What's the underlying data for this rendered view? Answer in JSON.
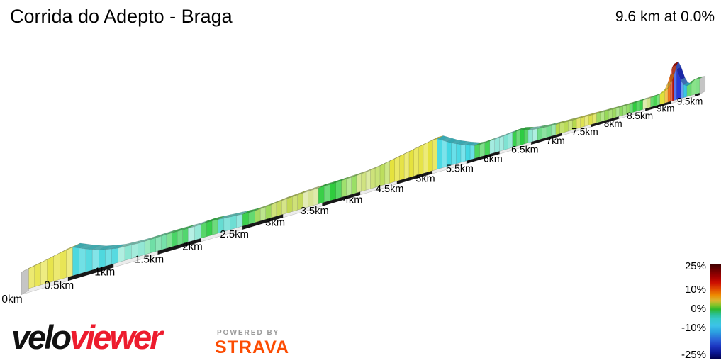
{
  "header": {
    "title": "Corrida do Adepto - Braga",
    "summary": "9.6 km at 0.0%"
  },
  "chart_data": {
    "type": "area",
    "title": "Corrida do Adepto - Braga",
    "total_label": "9.6 km at 0.0%",
    "distance_km": 9.6,
    "avg_gradient_pct": 0.0,
    "x_tick_km": [
      0,
      0.5,
      1,
      1.5,
      2,
      2.5,
      3,
      3.5,
      4,
      4.5,
      5,
      5.5,
      6,
      6.5,
      7,
      7.5,
      8,
      8.5,
      9,
      9.5
    ],
    "x_tick_labels": [
      "0km",
      "0.5km",
      "1km",
      "1.5km",
      "2km",
      "2.5km",
      "3km",
      "3.5km",
      "4km",
      "4.5km",
      "5km",
      "5.5km",
      "6km",
      "6.5km",
      "7km",
      "7.5km",
      "8km",
      "8.5km",
      "9km",
      "9.5km"
    ],
    "profile_points": [
      [
        0,
        26
      ],
      [
        0.2,
        31
      ],
      [
        0.4,
        37
      ],
      [
        0.55,
        40
      ],
      [
        0.7,
        32
      ],
      [
        0.85,
        25
      ],
      [
        1.05,
        20
      ],
      [
        1.3,
        18.5
      ],
      [
        1.6,
        19.5
      ],
      [
        1.9,
        19
      ],
      [
        2.1,
        20
      ],
      [
        2.35,
        18
      ],
      [
        2.6,
        16
      ],
      [
        2.8,
        17.5
      ],
      [
        3.0,
        20
      ],
      [
        3.3,
        22
      ],
      [
        3.7,
        23
      ],
      [
        4.0,
        24.5
      ],
      [
        4.2,
        27
      ],
      [
        4.5,
        33
      ],
      [
        4.8,
        39
      ],
      [
        5.05,
        44
      ],
      [
        5.3,
        30
      ],
      [
        5.5,
        22
      ],
      [
        5.65,
        17
      ],
      [
        5.9,
        18.5
      ],
      [
        6.1,
        20
      ],
      [
        6.3,
        21.5
      ],
      [
        6.5,
        17
      ],
      [
        6.7,
        15
      ],
      [
        7.0,
        14
      ],
      [
        7.3,
        13.5
      ],
      [
        7.6,
        13
      ],
      [
        7.9,
        12.5
      ],
      [
        8.2,
        12.5
      ],
      [
        8.5,
        13
      ],
      [
        8.7,
        13.5
      ],
      [
        8.8,
        15
      ],
      [
        8.9,
        20
      ],
      [
        8.97,
        32
      ],
      [
        9.02,
        45
      ],
      [
        9.05,
        52
      ],
      [
        9.09,
        50
      ],
      [
        9.14,
        38
      ],
      [
        9.2,
        26
      ],
      [
        9.27,
        17
      ],
      [
        9.33,
        15
      ],
      [
        9.4,
        19
      ],
      [
        9.47,
        22
      ],
      [
        9.53,
        21
      ],
      [
        9.6,
        20
      ]
    ],
    "gradient_sections": [
      [
        0,
        0.55,
        "#e7e44d"
      ],
      [
        0.55,
        1.05,
        "#4ed8de"
      ],
      [
        1.05,
        1.35,
        "#8ce6d2"
      ],
      [
        1.35,
        1.6,
        "#6fdfa6"
      ],
      [
        1.6,
        1.85,
        "#49d466"
      ],
      [
        1.85,
        2.0,
        "#97e8d8"
      ],
      [
        2.0,
        2.2,
        "#2ecc44"
      ],
      [
        2.2,
        2.5,
        "#66dcd2"
      ],
      [
        2.5,
        2.65,
        "#3dd04e"
      ],
      [
        2.65,
        2.85,
        "#9fd95c"
      ],
      [
        2.85,
        3.25,
        "#c3d957"
      ],
      [
        3.25,
        3.45,
        "#d7e396"
      ],
      [
        3.45,
        3.75,
        "#2fcc3e"
      ],
      [
        3.75,
        3.95,
        "#9adf66"
      ],
      [
        3.95,
        4.2,
        "#cde27a"
      ],
      [
        4.2,
        4.4,
        "#b9dc55"
      ],
      [
        4.4,
        5.07,
        "#e5e23e"
      ],
      [
        5.07,
        5.62,
        "#43d7e3"
      ],
      [
        5.62,
        5.85,
        "#44d355"
      ],
      [
        5.85,
        6.0,
        "#8de6d8"
      ],
      [
        6.0,
        6.2,
        "#7fe2d2"
      ],
      [
        6.2,
        6.45,
        "#2ecc44"
      ],
      [
        6.45,
        6.6,
        "#8ce6d2"
      ],
      [
        6.6,
        6.9,
        "#6fdc8a"
      ],
      [
        6.9,
        7.25,
        "#b5d94d"
      ],
      [
        7.25,
        7.6,
        "#dce04a"
      ],
      [
        7.6,
        7.95,
        "#97d958"
      ],
      [
        7.95,
        8.2,
        "#8cdb60"
      ],
      [
        8.2,
        8.45,
        "#2fcd3f"
      ],
      [
        8.45,
        8.6,
        "#cfe38a"
      ],
      [
        8.6,
        8.78,
        "#3fd148"
      ],
      [
        8.78,
        8.88,
        "#e0e13a"
      ],
      [
        8.88,
        8.94,
        "#f2b224"
      ],
      [
        8.94,
        8.99,
        "#ef6f15"
      ],
      [
        8.99,
        9.03,
        "#e03010"
      ],
      [
        9.03,
        9.065,
        "#b41208"
      ],
      [
        9.065,
        9.12,
        "#2b51e8"
      ],
      [
        9.12,
        9.2,
        "#1b2ed6"
      ],
      [
        9.2,
        9.26,
        "#2c75e4"
      ],
      [
        9.26,
        9.33,
        "#38c4e8"
      ],
      [
        9.33,
        9.42,
        "#41d14d"
      ],
      [
        9.42,
        9.52,
        "#83e184"
      ],
      [
        9.52,
        9.6,
        "#4cd355"
      ]
    ],
    "baseline_ticks": {
      "light": "#ececec",
      "dark": "#171717",
      "interval_km": 0.5
    },
    "end_caps_color": "#c5c5c5",
    "legend": {
      "labels": [
        {
          "text": "25%",
          "pos": 0.03
        },
        {
          "text": "10%",
          "pos": 0.275
        },
        {
          "text": "0%",
          "pos": 0.475
        },
        {
          "text": "-10%",
          "pos": 0.68
        },
        {
          "text": "-25%",
          "pos": 0.965
        }
      ],
      "gradient_stops": [
        [
          0,
          "#3c0000"
        ],
        [
          0.07,
          "#700000"
        ],
        [
          0.14,
          "#a40000"
        ],
        [
          0.2,
          "#cc0e00"
        ],
        [
          0.27,
          "#e24e00"
        ],
        [
          0.33,
          "#ee8a00"
        ],
        [
          0.39,
          "#d8b830"
        ],
        [
          0.44,
          "#7cc428"
        ],
        [
          0.48,
          "#2eb82e"
        ],
        [
          0.53,
          "#2abf8e"
        ],
        [
          0.58,
          "#35c9c9"
        ],
        [
          0.65,
          "#3cc3e8"
        ],
        [
          0.72,
          "#2b9fe0"
        ],
        [
          0.8,
          "#2a64d8"
        ],
        [
          0.87,
          "#1b35c0"
        ],
        [
          0.94,
          "#0a1490"
        ],
        [
          1,
          "#02004e"
        ]
      ]
    }
  },
  "footer": {
    "brand_part1": "velo",
    "brand_part2": "viewer",
    "brand_color1": "#111111",
    "brand_color2": "#ed1c2e",
    "powered_by": "POWERED BY",
    "powered_by_color": "#9b9b9b",
    "strava": "STRAVA",
    "strava_color": "#fc4c02"
  }
}
